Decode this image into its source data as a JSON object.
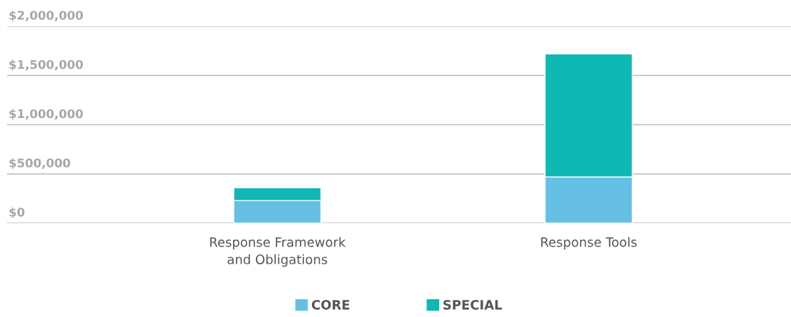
{
  "chart_data": {
    "type": "bar",
    "stacked": true,
    "categories": [
      "Response Framework\nand Obligations",
      "Response Tools"
    ],
    "series": [
      {
        "name": "CORE",
        "color": "#66c0e4",
        "values": [
          230000,
          470000
        ]
      },
      {
        "name": "SPECIAL",
        "color": "#0eb8b3",
        "values": [
          130000,
          1250000
        ]
      }
    ],
    "ylim": [
      0,
      2000000
    ],
    "yticks": [
      {
        "value": 0,
        "label": "$0"
      },
      {
        "value": 500000,
        "label": "$500,000"
      },
      {
        "value": 1000000,
        "label": "$1,000,000"
      },
      {
        "value": 1500000,
        "label": "$1,500,000"
      },
      {
        "value": 2000000,
        "label": "$2,000,000"
      }
    ],
    "grid": "y",
    "legend": "bottom"
  }
}
